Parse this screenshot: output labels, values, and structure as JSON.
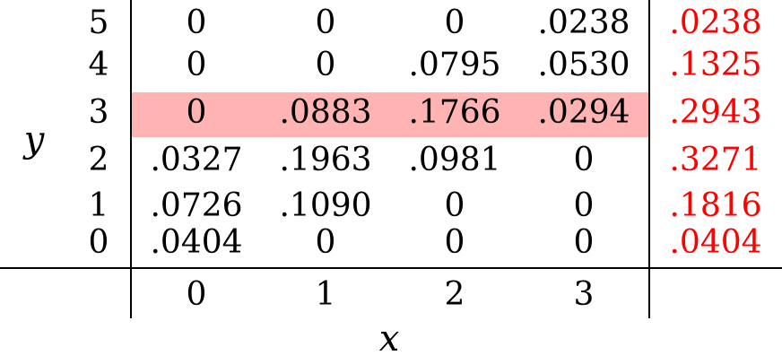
{
  "table": {
    "row_axis_label": "y",
    "col_axis_label": "x",
    "rows": [
      {
        "y": "5",
        "cells": [
          "0",
          "0",
          "0",
          ".0238"
        ],
        "marginal": ".0238"
      },
      {
        "y": "4",
        "cells": [
          "0",
          "0",
          ".0795",
          ".0530"
        ],
        "marginal": ".1325"
      },
      {
        "y": "3",
        "cells": [
          "0",
          ".0883",
          ".1766",
          ".0294"
        ],
        "marginal": ".2943",
        "highlighted": true
      },
      {
        "y": "2",
        "cells": [
          ".0327",
          ".1963",
          ".0981",
          "0"
        ],
        "marginal": ".3271"
      },
      {
        "y": "1",
        "cells": [
          ".0726",
          ".1090",
          "0",
          "0"
        ],
        "marginal": ".1816"
      },
      {
        "y": "0",
        "cells": [
          ".0404",
          "0",
          "0",
          "0"
        ],
        "marginal": ".0404"
      }
    ],
    "x_values": [
      "0",
      "1",
      "2",
      "3"
    ],
    "colors": {
      "marginal": "#ff0000",
      "highlight": "#ffb3b3"
    }
  }
}
